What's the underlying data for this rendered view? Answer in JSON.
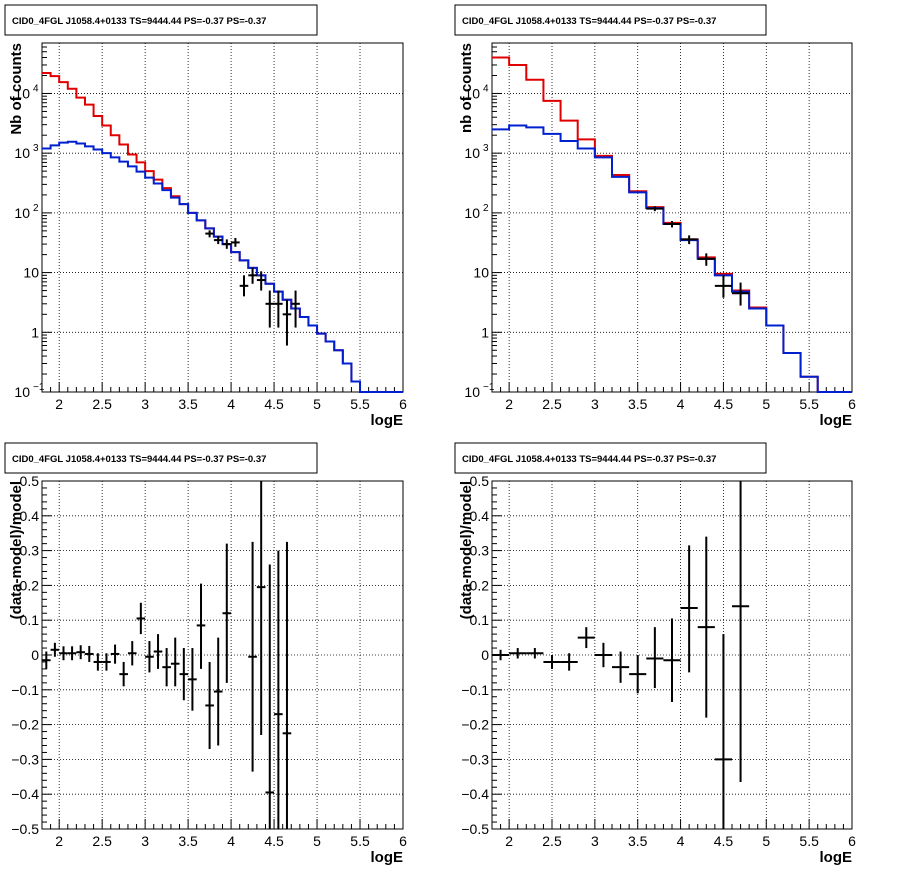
{
  "chart_data": [
    {
      "id": "top-left",
      "type": "histogram",
      "title": "CID0_4FGL J1058.4+0133 TS=9444.44 PS=-0.37 PS=-0.37",
      "xlabel": "logE",
      "ylabel": "Nb of counts",
      "xlim": [
        1.8,
        6.0
      ],
      "ylim": [
        0.1,
        70000
      ],
      "yscale": "log",
      "grid": true,
      "xticks": [
        {
          "v": 2,
          "label": "2"
        },
        {
          "v": 2.5,
          "label": "2.5"
        },
        {
          "v": 3,
          "label": "3"
        },
        {
          "v": 3.5,
          "label": "3.5"
        },
        {
          "v": 4,
          "label": "4"
        },
        {
          "v": 4.5,
          "label": "4.5"
        },
        {
          "v": 5,
          "label": "5"
        },
        {
          "v": 5.5,
          "label": "5.5"
        },
        {
          "v": 6,
          "label": "6"
        }
      ],
      "yticks": [
        {
          "v": 0.1,
          "label": "10",
          "exp": "−1"
        },
        {
          "v": 1,
          "label": "1",
          "exp": ""
        },
        {
          "v": 10,
          "label": "10",
          "exp": ""
        },
        {
          "v": 100,
          "label": "10",
          "exp": "2"
        },
        {
          "v": 1000,
          "label": "10",
          "exp": "3"
        },
        {
          "v": 10000,
          "label": "10",
          "exp": "4"
        }
      ],
      "bin_edges": [
        1.8,
        1.9,
        2.0,
        2.1,
        2.2,
        2.3,
        2.4,
        2.5,
        2.6,
        2.7,
        2.8,
        2.9,
        3.0,
        3.1,
        3.2,
        3.3,
        3.4,
        3.5,
        3.6,
        3.7,
        3.8,
        3.9,
        4.0,
        4.1,
        4.2,
        4.3,
        4.4,
        4.5,
        4.6,
        4.7,
        4.8,
        4.9,
        5.0,
        5.1,
        5.2,
        5.3,
        5.4,
        5.5,
        5.6,
        5.7,
        5.8,
        5.9,
        6.0
      ],
      "series": [
        {
          "color": "#e00000",
          "values": [
            22000,
            19500,
            15500,
            12000,
            8500,
            6500,
            4200,
            2900,
            2000,
            1400,
            950,
            700,
            500,
            360,
            260,
            190,
            140,
            100,
            75,
            55,
            40,
            30,
            22,
            16,
            12,
            9,
            6.5,
            4.8,
            3.5,
            2.5,
            1.8,
            1.3,
            0.95,
            0.7,
            0.5,
            0.3,
            0.15,
            0.1,
            0.1,
            0.1,
            0.1,
            0.1
          ]
        },
        {
          "color": "#0020d0",
          "values": [
            1200,
            1350,
            1500,
            1550,
            1450,
            1300,
            1150,
            1000,
            850,
            720,
            600,
            490,
            390,
            310,
            240,
            180,
            140,
            100,
            75,
            55,
            40,
            30,
            22,
            16,
            12,
            9,
            6.5,
            4.8,
            3.5,
            2.5,
            1.8,
            1.3,
            0.95,
            0.7,
            0.5,
            0.3,
            0.15,
            0.1,
            0.1,
            0.1,
            0.1,
            0.1
          ]
        }
      ],
      "points": [
        {
          "x": 3.75,
          "y": 45,
          "xerr": 0.05,
          "ylo": 39,
          "yhi": 51
        },
        {
          "x": 3.85,
          "y": 35,
          "xerr": 0.05,
          "ylo": 30,
          "yhi": 41
        },
        {
          "x": 3.95,
          "y": 30,
          "xerr": 0.05,
          "ylo": 25,
          "yhi": 36
        },
        {
          "x": 4.05,
          "y": 32,
          "xerr": 0.05,
          "ylo": 27,
          "yhi": 38
        },
        {
          "x": 4.15,
          "y": 6,
          "xerr": 0.05,
          "ylo": 4,
          "yhi": 9
        },
        {
          "x": 4.25,
          "y": 9,
          "xerr": 0.05,
          "ylo": 6.5,
          "yhi": 12
        },
        {
          "x": 4.35,
          "y": 7.5,
          "xerr": 0.05,
          "ylo": 5,
          "yhi": 10.5
        },
        {
          "x": 4.45,
          "y": 3,
          "xerr": 0.05,
          "ylo": 1.2,
          "yhi": 5
        },
        {
          "x": 4.55,
          "y": 3,
          "xerr": 0.05,
          "ylo": 1.2,
          "yhi": 5
        },
        {
          "x": 4.65,
          "y": 2,
          "xerr": 0.05,
          "ylo": 0.6,
          "yhi": 3.5
        },
        {
          "x": 4.75,
          "y": 3,
          "xerr": 0.05,
          "ylo": 1.2,
          "yhi": 5
        }
      ]
    },
    {
      "id": "top-right",
      "type": "histogram",
      "title": "CID0_4FGL J1058.4+0133 TS=9444.44 PS=-0.37 PS=-0.37",
      "xlabel": "logE",
      "ylabel": "nb of counts",
      "xlim": [
        1.8,
        6.0
      ],
      "ylim": [
        0.1,
        70000
      ],
      "yscale": "log",
      "grid": true,
      "xticks": [
        {
          "v": 2,
          "label": "2"
        },
        {
          "v": 2.5,
          "label": "2.5"
        },
        {
          "v": 3,
          "label": "3"
        },
        {
          "v": 3.5,
          "label": "3.5"
        },
        {
          "v": 4,
          "label": "4"
        },
        {
          "v": 4.5,
          "label": "4.5"
        },
        {
          "v": 5,
          "label": "5"
        },
        {
          "v": 5.5,
          "label": "5.5"
        },
        {
          "v": 6,
          "label": "6"
        }
      ],
      "yticks": [
        {
          "v": 0.1,
          "label": "10",
          "exp": "−1"
        },
        {
          "v": 1,
          "label": "1",
          "exp": ""
        },
        {
          "v": 10,
          "label": "10",
          "exp": ""
        },
        {
          "v": 100,
          "label": "10",
          "exp": "2"
        },
        {
          "v": 1000,
          "label": "10",
          "exp": "3"
        },
        {
          "v": 10000,
          "label": "10",
          "exp": "4"
        }
      ],
      "bin_edges": [
        1.8,
        2.0,
        2.2,
        2.4,
        2.6,
        2.8,
        3.0,
        3.2,
        3.4,
        3.6,
        3.8,
        4.0,
        4.2,
        4.4,
        4.6,
        4.8,
        5.0,
        5.2,
        5.4,
        5.6,
        5.8,
        6.0
      ],
      "series": [
        {
          "color": "#e00000",
          "values": [
            40000,
            30000,
            17000,
            7500,
            3500,
            1700,
            900,
            430,
            230,
            125,
            68,
            36,
            18,
            9.5,
            5,
            2.6,
            1.3,
            0.45,
            0.18,
            0.1,
            0.1
          ]
        },
        {
          "color": "#0020d0",
          "values": [
            2500,
            2900,
            2700,
            2100,
            1600,
            1200,
            850,
            400,
            220,
            120,
            65,
            35,
            17,
            9,
            4.8,
            2.5,
            1.3,
            0.45,
            0.18,
            0.1,
            0.1
          ]
        }
      ],
      "points": [
        {
          "x": 3.7,
          "y": 118,
          "xerr": 0.1,
          "ylo": 107,
          "yhi": 129
        },
        {
          "x": 3.9,
          "y": 65,
          "xerr": 0.1,
          "ylo": 57,
          "yhi": 73
        },
        {
          "x": 4.1,
          "y": 36,
          "xerr": 0.1,
          "ylo": 30,
          "yhi": 42
        },
        {
          "x": 4.3,
          "y": 17,
          "xerr": 0.1,
          "ylo": 13,
          "yhi": 21
        },
        {
          "x": 4.5,
          "y": 6,
          "xerr": 0.1,
          "ylo": 3.8,
          "yhi": 9
        },
        {
          "x": 4.7,
          "y": 4.5,
          "xerr": 0.1,
          "ylo": 2.8,
          "yhi": 6.8
        }
      ]
    },
    {
      "id": "bottom-left",
      "type": "scatter",
      "title": "CID0_4FGL J1058.4+0133 TS=9444.44 PS=-0.37 PS=-0.37",
      "xlabel": "logE",
      "ylabel": "(data-model)/model",
      "xlim": [
        1.8,
        6.0
      ],
      "ylim": [
        -0.5,
        0.5
      ],
      "yscale": "linear",
      "grid": true,
      "xticks": [
        {
          "v": 2,
          "label": "2"
        },
        {
          "v": 2.5,
          "label": "2.5"
        },
        {
          "v": 3,
          "label": "3"
        },
        {
          "v": 3.5,
          "label": "3.5"
        },
        {
          "v": 4,
          "label": "4"
        },
        {
          "v": 4.5,
          "label": "4.5"
        },
        {
          "v": 5,
          "label": "5"
        },
        {
          "v": 5.5,
          "label": "5.5"
        },
        {
          "v": 6,
          "label": "6"
        }
      ],
      "yticks": [
        {
          "v": -0.5,
          "label": "−0.5"
        },
        {
          "v": -0.4,
          "label": "−0.4"
        },
        {
          "v": -0.3,
          "label": "−0.3"
        },
        {
          "v": -0.2,
          "label": "−0.2"
        },
        {
          "v": -0.1,
          "label": "−0.1"
        },
        {
          "v": 0,
          "label": "0"
        },
        {
          "v": 0.1,
          "label": "0.1"
        },
        {
          "v": 0.2,
          "label": "0.2"
        },
        {
          "v": 0.3,
          "label": "0.3"
        },
        {
          "v": 0.4,
          "label": "0.4"
        },
        {
          "v": 0.5,
          "label": "0.5"
        }
      ],
      "points": [
        {
          "x": 1.85,
          "y": -0.015,
          "xerr": 0.05,
          "ylo": -0.04,
          "yhi": 0.01
        },
        {
          "x": 1.95,
          "y": 0.015,
          "xerr": 0.05,
          "ylo": -0.005,
          "yhi": 0.035
        },
        {
          "x": 2.05,
          "y": 0.005,
          "xerr": 0.05,
          "ylo": -0.015,
          "yhi": 0.025
        },
        {
          "x": 2.15,
          "y": 0.005,
          "xerr": 0.05,
          "ylo": -0.015,
          "yhi": 0.025
        },
        {
          "x": 2.25,
          "y": 0.008,
          "xerr": 0.05,
          "ylo": -0.012,
          "yhi": 0.028
        },
        {
          "x": 2.35,
          "y": 0.003,
          "xerr": 0.05,
          "ylo": -0.02,
          "yhi": 0.026
        },
        {
          "x": 2.45,
          "y": -0.02,
          "xerr": 0.05,
          "ylo": -0.045,
          "yhi": 0.005
        },
        {
          "x": 2.55,
          "y": -0.02,
          "xerr": 0.05,
          "ylo": -0.045,
          "yhi": 0.005
        },
        {
          "x": 2.65,
          "y": 0.003,
          "xerr": 0.05,
          "ylo": -0.025,
          "yhi": 0.03
        },
        {
          "x": 2.75,
          "y": -0.055,
          "xerr": 0.05,
          "ylo": -0.09,
          "yhi": -0.02
        },
        {
          "x": 2.85,
          "y": 0.005,
          "xerr": 0.05,
          "ylo": -0.03,
          "yhi": 0.04
        },
        {
          "x": 2.95,
          "y": 0.105,
          "xerr": 0.05,
          "ylo": 0.06,
          "yhi": 0.15
        },
        {
          "x": 3.05,
          "y": -0.005,
          "xerr": 0.05,
          "ylo": -0.05,
          "yhi": 0.04
        },
        {
          "x": 3.15,
          "y": 0.01,
          "xerr": 0.05,
          "ylo": -0.04,
          "yhi": 0.06
        },
        {
          "x": 3.25,
          "y": -0.035,
          "xerr": 0.05,
          "ylo": -0.09,
          "yhi": 0.02
        },
        {
          "x": 3.35,
          "y": -0.025,
          "xerr": 0.05,
          "ylo": -0.09,
          "yhi": 0.05
        },
        {
          "x": 3.45,
          "y": -0.055,
          "xerr": 0.05,
          "ylo": -0.13,
          "yhi": 0.02
        },
        {
          "x": 3.55,
          "y": -0.07,
          "xerr": 0.05,
          "ylo": -0.16,
          "yhi": 0.02
        },
        {
          "x": 3.65,
          "y": 0.085,
          "xerr": 0.05,
          "ylo": -0.04,
          "yhi": 0.205
        },
        {
          "x": 3.75,
          "y": -0.145,
          "xerr": 0.05,
          "ylo": -0.27,
          "yhi": -0.02
        },
        {
          "x": 3.85,
          "y": -0.105,
          "xerr": 0.05,
          "ylo": -0.26,
          "yhi": 0.05
        },
        {
          "x": 3.95,
          "y": 0.12,
          "xerr": 0.05,
          "ylo": -0.08,
          "yhi": 0.32
        },
        {
          "x": 4.25,
          "y": -0.005,
          "xerr": 0.05,
          "ylo": -0.335,
          "yhi": 0.325
        },
        {
          "x": 4.35,
          "y": 0.195,
          "xerr": 0.05,
          "ylo": -0.23,
          "yhi": 0.5
        },
        {
          "x": 4.45,
          "y": -0.395,
          "xerr": 0.05,
          "ylo": -0.5,
          "yhi": 0.26
        },
        {
          "x": 4.55,
          "y": -0.17,
          "xerr": 0.05,
          "ylo": -0.5,
          "yhi": 0.3
        },
        {
          "x": 4.65,
          "y": -0.225,
          "xerr": 0.05,
          "ylo": -0.5,
          "yhi": 0.325
        }
      ]
    },
    {
      "id": "bottom-right",
      "type": "scatter",
      "title": "CID0_4FGL J1058.4+0133 TS=9444.44 PS=-0.37 PS=-0.37",
      "xlabel": "logE",
      "ylabel": "(data-model)/model",
      "xlim": [
        1.8,
        6.0
      ],
      "ylim": [
        -0.5,
        0.5
      ],
      "yscale": "linear",
      "grid": true,
      "xticks": [
        {
          "v": 2,
          "label": "2"
        },
        {
          "v": 2.5,
          "label": "2.5"
        },
        {
          "v": 3,
          "label": "3"
        },
        {
          "v": 3.5,
          "label": "3.5"
        },
        {
          "v": 4,
          "label": "4"
        },
        {
          "v": 4.5,
          "label": "4.5"
        },
        {
          "v": 5,
          "label": "5"
        },
        {
          "v": 5.5,
          "label": "5.5"
        },
        {
          "v": 6,
          "label": "6"
        }
      ],
      "yticks": [
        {
          "v": -0.5,
          "label": "−0.5"
        },
        {
          "v": -0.4,
          "label": "−0.4"
        },
        {
          "v": -0.3,
          "label": "−0.3"
        },
        {
          "v": -0.2,
          "label": "−0.2"
        },
        {
          "v": -0.1,
          "label": "−0.1"
        },
        {
          "v": 0,
          "label": "0"
        },
        {
          "v": 0.1,
          "label": "0.1"
        },
        {
          "v": 0.2,
          "label": "0.2"
        },
        {
          "v": 0.3,
          "label": "0.3"
        },
        {
          "v": 0.4,
          "label": "0.4"
        },
        {
          "v": 0.5,
          "label": "0.5"
        }
      ],
      "points": [
        {
          "x": 1.9,
          "y": 0.0,
          "xerr": 0.1,
          "ylo": -0.015,
          "yhi": 0.015
        },
        {
          "x": 2.1,
          "y": 0.005,
          "xerr": 0.1,
          "ylo": -0.01,
          "yhi": 0.02
        },
        {
          "x": 2.3,
          "y": 0.005,
          "xerr": 0.1,
          "ylo": -0.01,
          "yhi": 0.02
        },
        {
          "x": 2.5,
          "y": -0.02,
          "xerr": 0.1,
          "ylo": -0.04,
          "yhi": 0.0
        },
        {
          "x": 2.7,
          "y": -0.02,
          "xerr": 0.1,
          "ylo": -0.045,
          "yhi": 0.005
        },
        {
          "x": 2.9,
          "y": 0.05,
          "xerr": 0.1,
          "ylo": 0.02,
          "yhi": 0.08
        },
        {
          "x": 3.1,
          "y": 0.0,
          "xerr": 0.1,
          "ylo": -0.035,
          "yhi": 0.035
        },
        {
          "x": 3.3,
          "y": -0.035,
          "xerr": 0.1,
          "ylo": -0.08,
          "yhi": 0.01
        },
        {
          "x": 3.5,
          "y": -0.055,
          "xerr": 0.1,
          "ylo": -0.11,
          "yhi": 0.0
        },
        {
          "x": 3.7,
          "y": -0.01,
          "xerr": 0.1,
          "ylo": -0.095,
          "yhi": 0.08
        },
        {
          "x": 3.9,
          "y": -0.015,
          "xerr": 0.1,
          "ylo": -0.135,
          "yhi": 0.105
        },
        {
          "x": 4.1,
          "y": 0.135,
          "xerr": 0.1,
          "ylo": -0.05,
          "yhi": 0.315
        },
        {
          "x": 4.3,
          "y": 0.08,
          "xerr": 0.1,
          "ylo": -0.18,
          "yhi": 0.34
        },
        {
          "x": 4.5,
          "y": -0.3,
          "xerr": 0.1,
          "ylo": -0.5,
          "yhi": 0.06
        },
        {
          "x": 4.7,
          "y": 0.14,
          "xerr": 0.1,
          "ylo": -0.365,
          "yhi": 0.5
        }
      ]
    }
  ]
}
